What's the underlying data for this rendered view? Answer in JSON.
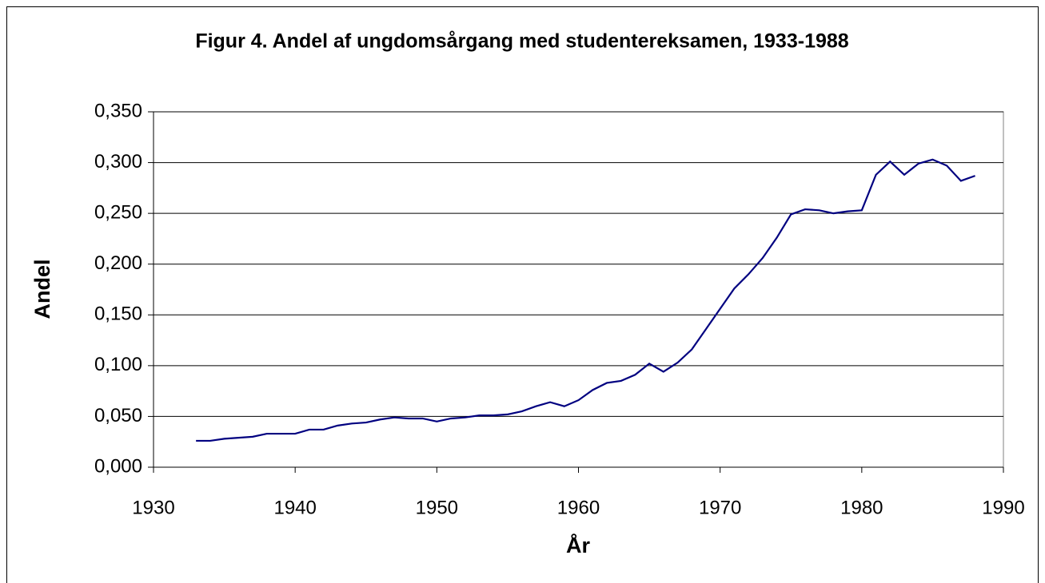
{
  "chart_data": {
    "type": "line",
    "title": "Figur 4. Andel af ungdomsårgang med studentereksamen, 1933-1988",
    "x_label": "År",
    "y_label": "Andel",
    "x": [
      1933,
      1934,
      1935,
      1936,
      1937,
      1938,
      1939,
      1940,
      1941,
      1942,
      1943,
      1944,
      1945,
      1946,
      1947,
      1948,
      1949,
      1950,
      1951,
      1952,
      1953,
      1954,
      1955,
      1956,
      1957,
      1958,
      1959,
      1960,
      1961,
      1962,
      1963,
      1964,
      1965,
      1966,
      1967,
      1968,
      1969,
      1970,
      1971,
      1972,
      1973,
      1974,
      1975,
      1976,
      1977,
      1978,
      1979,
      1980,
      1981,
      1982,
      1983,
      1984,
      1985,
      1986,
      1987,
      1988
    ],
    "series": [
      {
        "name": "Andel",
        "color": "#000080",
        "values": [
          0.026,
          0.026,
          0.028,
          0.029,
          0.03,
          0.033,
          0.033,
          0.033,
          0.037,
          0.037,
          0.041,
          0.043,
          0.044,
          0.047,
          0.049,
          0.048,
          0.048,
          0.045,
          0.048,
          0.049,
          0.051,
          0.051,
          0.052,
          0.055,
          0.06,
          0.064,
          0.06,
          0.066,
          0.076,
          0.083,
          0.085,
          0.091,
          0.102,
          0.094,
          0.103,
          0.116,
          0.136,
          0.156,
          0.176,
          0.19,
          0.206,
          0.226,
          0.249,
          0.254,
          0.253,
          0.25,
          0.252,
          0.253,
          0.288,
          0.301,
          0.288,
          0.299,
          0.303,
          0.297,
          0.282,
          0.287
        ]
      }
    ],
    "xlim": [
      1930,
      1990
    ],
    "xticks": [
      1930,
      1940,
      1950,
      1960,
      1970,
      1980,
      1990
    ],
    "ylim": [
      0,
      0.35
    ],
    "yticks": [
      {
        "value": 0,
        "label": "0,000"
      },
      {
        "value": 0.05,
        "label": "0,050"
      },
      {
        "value": 0.1,
        "label": "0,100"
      },
      {
        "value": 0.15,
        "label": "0,150"
      },
      {
        "value": 0.2,
        "label": "0,200"
      },
      {
        "value": 0.25,
        "label": "0,250"
      },
      {
        "value": 0.3,
        "label": "0,300"
      },
      {
        "value": 0.35,
        "label": "0,350"
      }
    ],
    "grid": true
  }
}
